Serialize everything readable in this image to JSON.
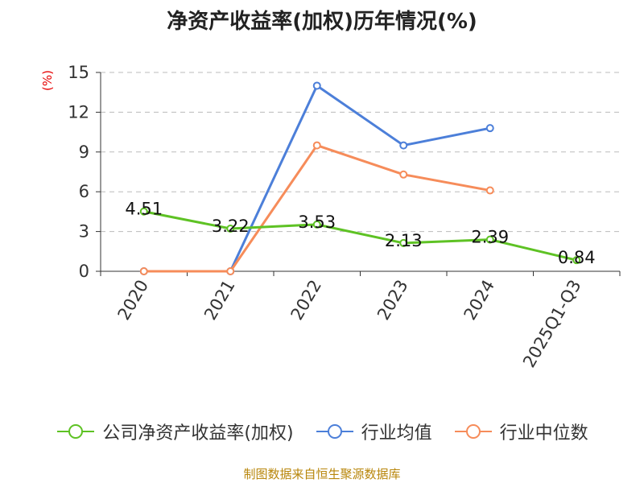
{
  "title": "净资产收益率(加权)历年情况(%)",
  "unit_label": "(%)",
  "footer": "制图数据来自恒生聚源数据库",
  "colors": {
    "company": "#5ec224",
    "industry_avg": "#4c7fd9",
    "industry_median": "#f68c5a",
    "grid": "#bbbbbb",
    "axis": "#333333"
  },
  "chart_data": {
    "type": "line",
    "categories": [
      "2020",
      "2021",
      "2022",
      "2023",
      "2024",
      "2025Q1-Q3"
    ],
    "ylim": [
      0,
      15
    ],
    "yticks": [
      "0",
      "3",
      "6",
      "9",
      "12",
      "15"
    ],
    "grid": true,
    "legend_position": "bottom",
    "series": [
      {
        "name": "公司净资产收益率(加权)",
        "values": [
          4.51,
          3.22,
          3.53,
          2.13,
          2.39,
          0.84
        ],
        "labels": [
          "4.51",
          "3.22",
          "3.53",
          "2.13",
          "2.39",
          "0.84"
        ]
      },
      {
        "name": "行业均值",
        "values": [
          0,
          0,
          14.0,
          9.5,
          10.8,
          null
        ]
      },
      {
        "name": "行业中位数",
        "values": [
          0,
          0,
          9.5,
          7.3,
          6.1,
          null
        ]
      }
    ]
  }
}
